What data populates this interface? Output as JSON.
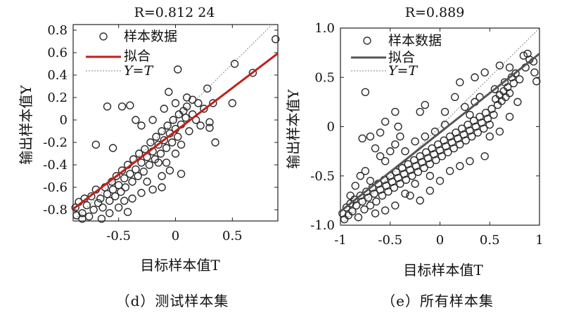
{
  "chart_data": [
    {
      "type": "scatter",
      "title": "R=0.812 24",
      "xlabel": "目标样本值T",
      "ylabel": "输出样本值Y",
      "caption": "（d）测试样本集",
      "xlim": [
        -0.9,
        0.9
      ],
      "ylim": [
        -0.9,
        0.85
      ],
      "xticks": [
        -0.5,
        0,
        0.5
      ],
      "xtick_labels": [
        "-0.5",
        "0",
        "0.5"
      ],
      "yticks": [
        0.8,
        0.6,
        0.4,
        0.2,
        0,
        -0.2,
        -0.4,
        -0.6,
        -0.8
      ],
      "ytick_labels": [
        "0.8",
        "0.6",
        "0.4",
        "0.2",
        "0",
        "-0.2",
        "-0.4",
        "-0.6",
        "-0.8"
      ],
      "legend": [
        "样本数据",
        "拟合",
        "Y=T"
      ],
      "legend_position": "top-left",
      "fit_color": "#c0201c",
      "fit_line": {
        "slope": 0.77,
        "intercept": -0.1
      },
      "identity_line": {
        "slope": 1,
        "intercept": 0
      },
      "points": [
        [
          -0.88,
          -0.78
        ],
        [
          -0.85,
          -0.73
        ],
        [
          -0.82,
          -0.83
        ],
        [
          -0.8,
          -0.7
        ],
        [
          -0.78,
          -0.76
        ],
        [
          -0.76,
          -0.86
        ],
        [
          -0.74,
          -0.68
        ],
        [
          -0.72,
          -0.8
        ],
        [
          -0.7,
          -0.62
        ],
        [
          -0.68,
          -0.74
        ],
        [
          -0.66,
          -0.7
        ],
        [
          -0.64,
          -0.78
        ],
        [
          -0.62,
          -0.6
        ],
        [
          -0.6,
          -0.66
        ],
        [
          -0.58,
          -0.72
        ],
        [
          -0.56,
          -0.55
        ],
        [
          -0.55,
          -0.62
        ],
        [
          -0.53,
          -0.68
        ],
        [
          -0.52,
          -0.5
        ],
        [
          -0.5,
          -0.58
        ],
        [
          -0.48,
          -0.64
        ],
        [
          -0.47,
          -0.45
        ],
        [
          -0.45,
          -0.52
        ],
        [
          -0.44,
          -0.6
        ],
        [
          -0.42,
          -0.4
        ],
        [
          -0.4,
          -0.48
        ],
        [
          -0.38,
          -0.55
        ],
        [
          -0.37,
          -0.35
        ],
        [
          -0.35,
          -0.44
        ],
        [
          -0.33,
          -0.5
        ],
        [
          -0.32,
          -0.3
        ],
        [
          -0.3,
          -0.38
        ],
        [
          -0.28,
          -0.46
        ],
        [
          -0.27,
          -0.26
        ],
        [
          -0.25,
          -0.33
        ],
        [
          -0.23,
          -0.4
        ],
        [
          -0.22,
          -0.2
        ],
        [
          -0.2,
          -0.28
        ],
        [
          -0.18,
          -0.35
        ],
        [
          -0.17,
          -0.15
        ],
        [
          -0.15,
          -0.22
        ],
        [
          -0.13,
          -0.3
        ],
        [
          -0.12,
          -0.1
        ],
        [
          -0.1,
          -0.18
        ],
        [
          -0.08,
          -0.25
        ],
        [
          -0.07,
          -0.05
        ],
        [
          -0.05,
          -0.12
        ],
        [
          -0.03,
          -0.2
        ],
        [
          -0.02,
          0.0
        ],
        [
          0.0,
          -0.08
        ],
        [
          0.02,
          -0.15
        ],
        [
          0.03,
          0.05
        ],
        [
          0.05,
          -0.04
        ],
        [
          0.07,
          0.08
        ],
        [
          0.09,
          0.02
        ],
        [
          0.1,
          0.12
        ],
        [
          0.12,
          -0.1
        ],
        [
          0.15,
          0.05
        ],
        [
          0.18,
          0.0
        ],
        [
          0.2,
          0.15
        ],
        [
          0.22,
          -0.05
        ],
        [
          0.25,
          0.1
        ],
        [
          0.28,
          0.28
        ],
        [
          0.3,
          -0.02
        ],
        [
          -0.6,
          0.12
        ],
        [
          -0.47,
          0.12
        ],
        [
          -0.4,
          0.13
        ],
        [
          -0.7,
          -0.22
        ],
        [
          -0.55,
          -0.25
        ],
        [
          -0.35,
          0.0
        ],
        [
          -0.3,
          -0.05
        ],
        [
          -0.2,
          0.0
        ],
        [
          -0.25,
          -0.55
        ],
        [
          -0.12,
          -0.5
        ],
        [
          -0.05,
          -0.45
        ],
        [
          0.05,
          -0.48
        ],
        [
          -0.15,
          -0.38
        ],
        [
          -0.08,
          -0.38
        ],
        [
          0.0,
          -0.3
        ],
        [
          0.05,
          -0.22
        ],
        [
          -0.2,
          -0.62
        ],
        [
          -0.3,
          -0.65
        ],
        [
          -0.38,
          -0.7
        ],
        [
          -0.45,
          -0.72
        ],
        [
          0.1,
          0.2
        ],
        [
          0.0,
          0.15
        ],
        [
          -0.06,
          0.25
        ],
        [
          0.02,
          0.45
        ],
        [
          -0.1,
          0.1
        ],
        [
          0.15,
          0.18
        ],
        [
          0.5,
          0.15
        ],
        [
          0.33,
          0.15
        ],
        [
          0.3,
          -0.07
        ],
        [
          0.35,
          -0.2
        ],
        [
          0.52,
          0.5
        ],
        [
          0.68,
          0.42
        ],
        [
          0.88,
          0.72
        ],
        [
          -0.65,
          -0.88
        ],
        [
          -0.58,
          -0.83
        ],
        [
          -0.5,
          -0.78
        ],
        [
          -0.42,
          -0.82
        ],
        [
          -0.82,
          -0.88
        ],
        [
          -0.87,
          -0.85
        ],
        [
          -0.12,
          -0.6
        ]
      ]
    },
    {
      "type": "scatter",
      "title": "R=0.889",
      "xlabel": "目标样本值T",
      "ylabel": "输出样本值Y",
      "caption": "（e）所有样本集",
      "xlim": [
        -1,
        1
      ],
      "ylim": [
        -1,
        1
      ],
      "xticks": [
        -1,
        -0.5,
        0,
        0.5,
        1
      ],
      "xtick_labels": [
        "-1",
        "-0.5",
        "0",
        "0.5",
        "1"
      ],
      "yticks": [
        1,
        0.5,
        0,
        -0.5,
        -1
      ],
      "ytick_labels": [
        "1.0",
        "0.5",
        "0",
        "-0.5",
        "-1.0"
      ],
      "legend": [
        "样本数据",
        "拟合",
        "Y=T"
      ],
      "legend_position": "top-left",
      "fit_color": "#555555",
      "fit_line": {
        "slope": 0.8,
        "intercept": -0.06
      },
      "identity_line": {
        "slope": 1,
        "intercept": 0
      },
      "points": [
        [
          -0.98,
          -0.88
        ],
        [
          -0.96,
          -0.94
        ],
        [
          -0.94,
          -0.82
        ],
        [
          -0.92,
          -0.9
        ],
        [
          -0.9,
          -0.78
        ],
        [
          -0.88,
          -0.86
        ],
        [
          -0.86,
          -0.74
        ],
        [
          -0.84,
          -0.8
        ],
        [
          -0.82,
          -0.92
        ],
        [
          -0.8,
          -0.7
        ],
        [
          -0.78,
          -0.76
        ],
        [
          -0.76,
          -0.84
        ],
        [
          -0.74,
          -0.66
        ],
        [
          -0.72,
          -0.72
        ],
        [
          -0.7,
          -0.8
        ],
        [
          -0.68,
          -0.62
        ],
        [
          -0.66,
          -0.68
        ],
        [
          -0.64,
          -0.76
        ],
        [
          -0.62,
          -0.58
        ],
        [
          -0.6,
          -0.64
        ],
        [
          -0.58,
          -0.7
        ],
        [
          -0.56,
          -0.54
        ],
        [
          -0.54,
          -0.6
        ],
        [
          -0.52,
          -0.66
        ],
        [
          -0.5,
          -0.5
        ],
        [
          -0.48,
          -0.56
        ],
        [
          -0.46,
          -0.62
        ],
        [
          -0.44,
          -0.46
        ],
        [
          -0.42,
          -0.52
        ],
        [
          -0.4,
          -0.58
        ],
        [
          -0.38,
          -0.42
        ],
        [
          -0.36,
          -0.48
        ],
        [
          -0.34,
          -0.54
        ],
        [
          -0.32,
          -0.38
        ],
        [
          -0.3,
          -0.44
        ],
        [
          -0.28,
          -0.5
        ],
        [
          -0.26,
          -0.34
        ],
        [
          -0.24,
          -0.4
        ],
        [
          -0.22,
          -0.46
        ],
        [
          -0.2,
          -0.3
        ],
        [
          -0.18,
          -0.36
        ],
        [
          -0.16,
          -0.42
        ],
        [
          -0.14,
          -0.26
        ],
        [
          -0.12,
          -0.32
        ],
        [
          -0.1,
          -0.38
        ],
        [
          -0.08,
          -0.22
        ],
        [
          -0.06,
          -0.28
        ],
        [
          -0.04,
          -0.34
        ],
        [
          -0.02,
          -0.18
        ],
        [
          0.0,
          -0.24
        ],
        [
          0.02,
          -0.3
        ],
        [
          0.04,
          -0.14
        ],
        [
          0.06,
          -0.2
        ],
        [
          0.08,
          -0.26
        ],
        [
          0.1,
          -0.1
        ],
        [
          0.12,
          -0.16
        ],
        [
          0.14,
          -0.22
        ],
        [
          0.16,
          -0.06
        ],
        [
          0.18,
          -0.12
        ],
        [
          0.2,
          -0.18
        ],
        [
          0.22,
          -0.02
        ],
        [
          0.24,
          -0.08
        ],
        [
          0.26,
          -0.14
        ],
        [
          0.28,
          0.02
        ],
        [
          0.3,
          -0.04
        ],
        [
          0.32,
          -0.1
        ],
        [
          0.34,
          0.06
        ],
        [
          0.36,
          0.0
        ],
        [
          0.38,
          -0.06
        ],
        [
          0.4,
          0.1
        ],
        [
          0.42,
          0.04
        ],
        [
          0.44,
          -0.02
        ],
        [
          0.46,
          0.14
        ],
        [
          0.48,
          0.08
        ],
        [
          0.5,
          0.02
        ],
        [
          0.52,
          0.18
        ],
        [
          0.54,
          0.12
        ],
        [
          0.56,
          0.28
        ],
        [
          0.58,
          0.22
        ],
        [
          0.6,
          0.32
        ],
        [
          0.62,
          0.26
        ],
        [
          0.64,
          0.36
        ],
        [
          0.66,
          0.3
        ],
        [
          0.68,
          0.4
        ],
        [
          0.7,
          0.34
        ],
        [
          0.72,
          0.5
        ],
        [
          0.74,
          0.44
        ],
        [
          0.76,
          0.54
        ],
        [
          0.8,
          0.48
        ],
        [
          0.84,
          0.72
        ],
        [
          0.86,
          0.6
        ],
        [
          0.9,
          0.68
        ],
        [
          0.94,
          0.66
        ],
        [
          0.97,
          0.46
        ],
        [
          0.95,
          0.55
        ],
        [
          0.88,
          0.74
        ],
        [
          -0.7,
          -0.1
        ],
        [
          -0.65,
          -0.22
        ],
        [
          -0.6,
          -0.3
        ],
        [
          -0.55,
          -0.35
        ],
        [
          -0.5,
          -0.25
        ],
        [
          -0.45,
          -0.18
        ],
        [
          -0.4,
          -0.1
        ],
        [
          -0.42,
          -0.0
        ],
        [
          -0.75,
          0.35
        ],
        [
          -0.45,
          0.15
        ],
        [
          -0.2,
          0.15
        ],
        [
          -0.15,
          0.22
        ],
        [
          0.05,
          0.15
        ],
        [
          0.15,
          0.3
        ],
        [
          0.25,
          0.2
        ],
        [
          0.35,
          0.25
        ],
        [
          -0.3,
          -0.7
        ],
        [
          -0.2,
          -0.75
        ],
        [
          -0.1,
          -0.65
        ],
        [
          0.0,
          -0.55
        ],
        [
          0.1,
          -0.45
        ],
        [
          0.2,
          -0.4
        ],
        [
          0.3,
          -0.35
        ],
        [
          0.45,
          -0.3
        ],
        [
          -0.85,
          -0.6
        ],
        [
          -0.8,
          -0.5
        ],
        [
          -0.75,
          -0.45
        ],
        [
          -0.7,
          -0.55
        ],
        [
          -0.9,
          -0.7
        ],
        [
          -0.65,
          -0.88
        ],
        [
          -0.55,
          -0.85
        ],
        [
          -0.45,
          -0.8
        ],
        [
          -0.78,
          -0.12
        ],
        [
          -0.6,
          -0.06
        ],
        [
          -0.55,
          0.05
        ],
        [
          0.2,
          0.45
        ],
        [
          0.35,
          0.5
        ],
        [
          0.45,
          0.55
        ],
        [
          0.6,
          0.62
        ],
        [
          0.7,
          0.6
        ],
        [
          0.65,
          0.45
        ],
        [
          0.55,
          0.38
        ],
        [
          0.4,
          0.3
        ],
        [
          0.3,
          0.12
        ],
        [
          0.5,
          -0.1
        ],
        [
          0.6,
          -0.05
        ],
        [
          0.7,
          0.1
        ],
        [
          0.78,
          0.25
        ],
        [
          -0.35,
          -0.25
        ],
        [
          -0.25,
          -0.15
        ],
        [
          -0.15,
          -0.1
        ],
        [
          -0.05,
          -0.05
        ],
        [
          0.05,
          0.02
        ],
        [
          -0.1,
          -0.5
        ],
        [
          -0.25,
          -0.58
        ],
        [
          -0.35,
          -0.68
        ]
      ]
    }
  ]
}
